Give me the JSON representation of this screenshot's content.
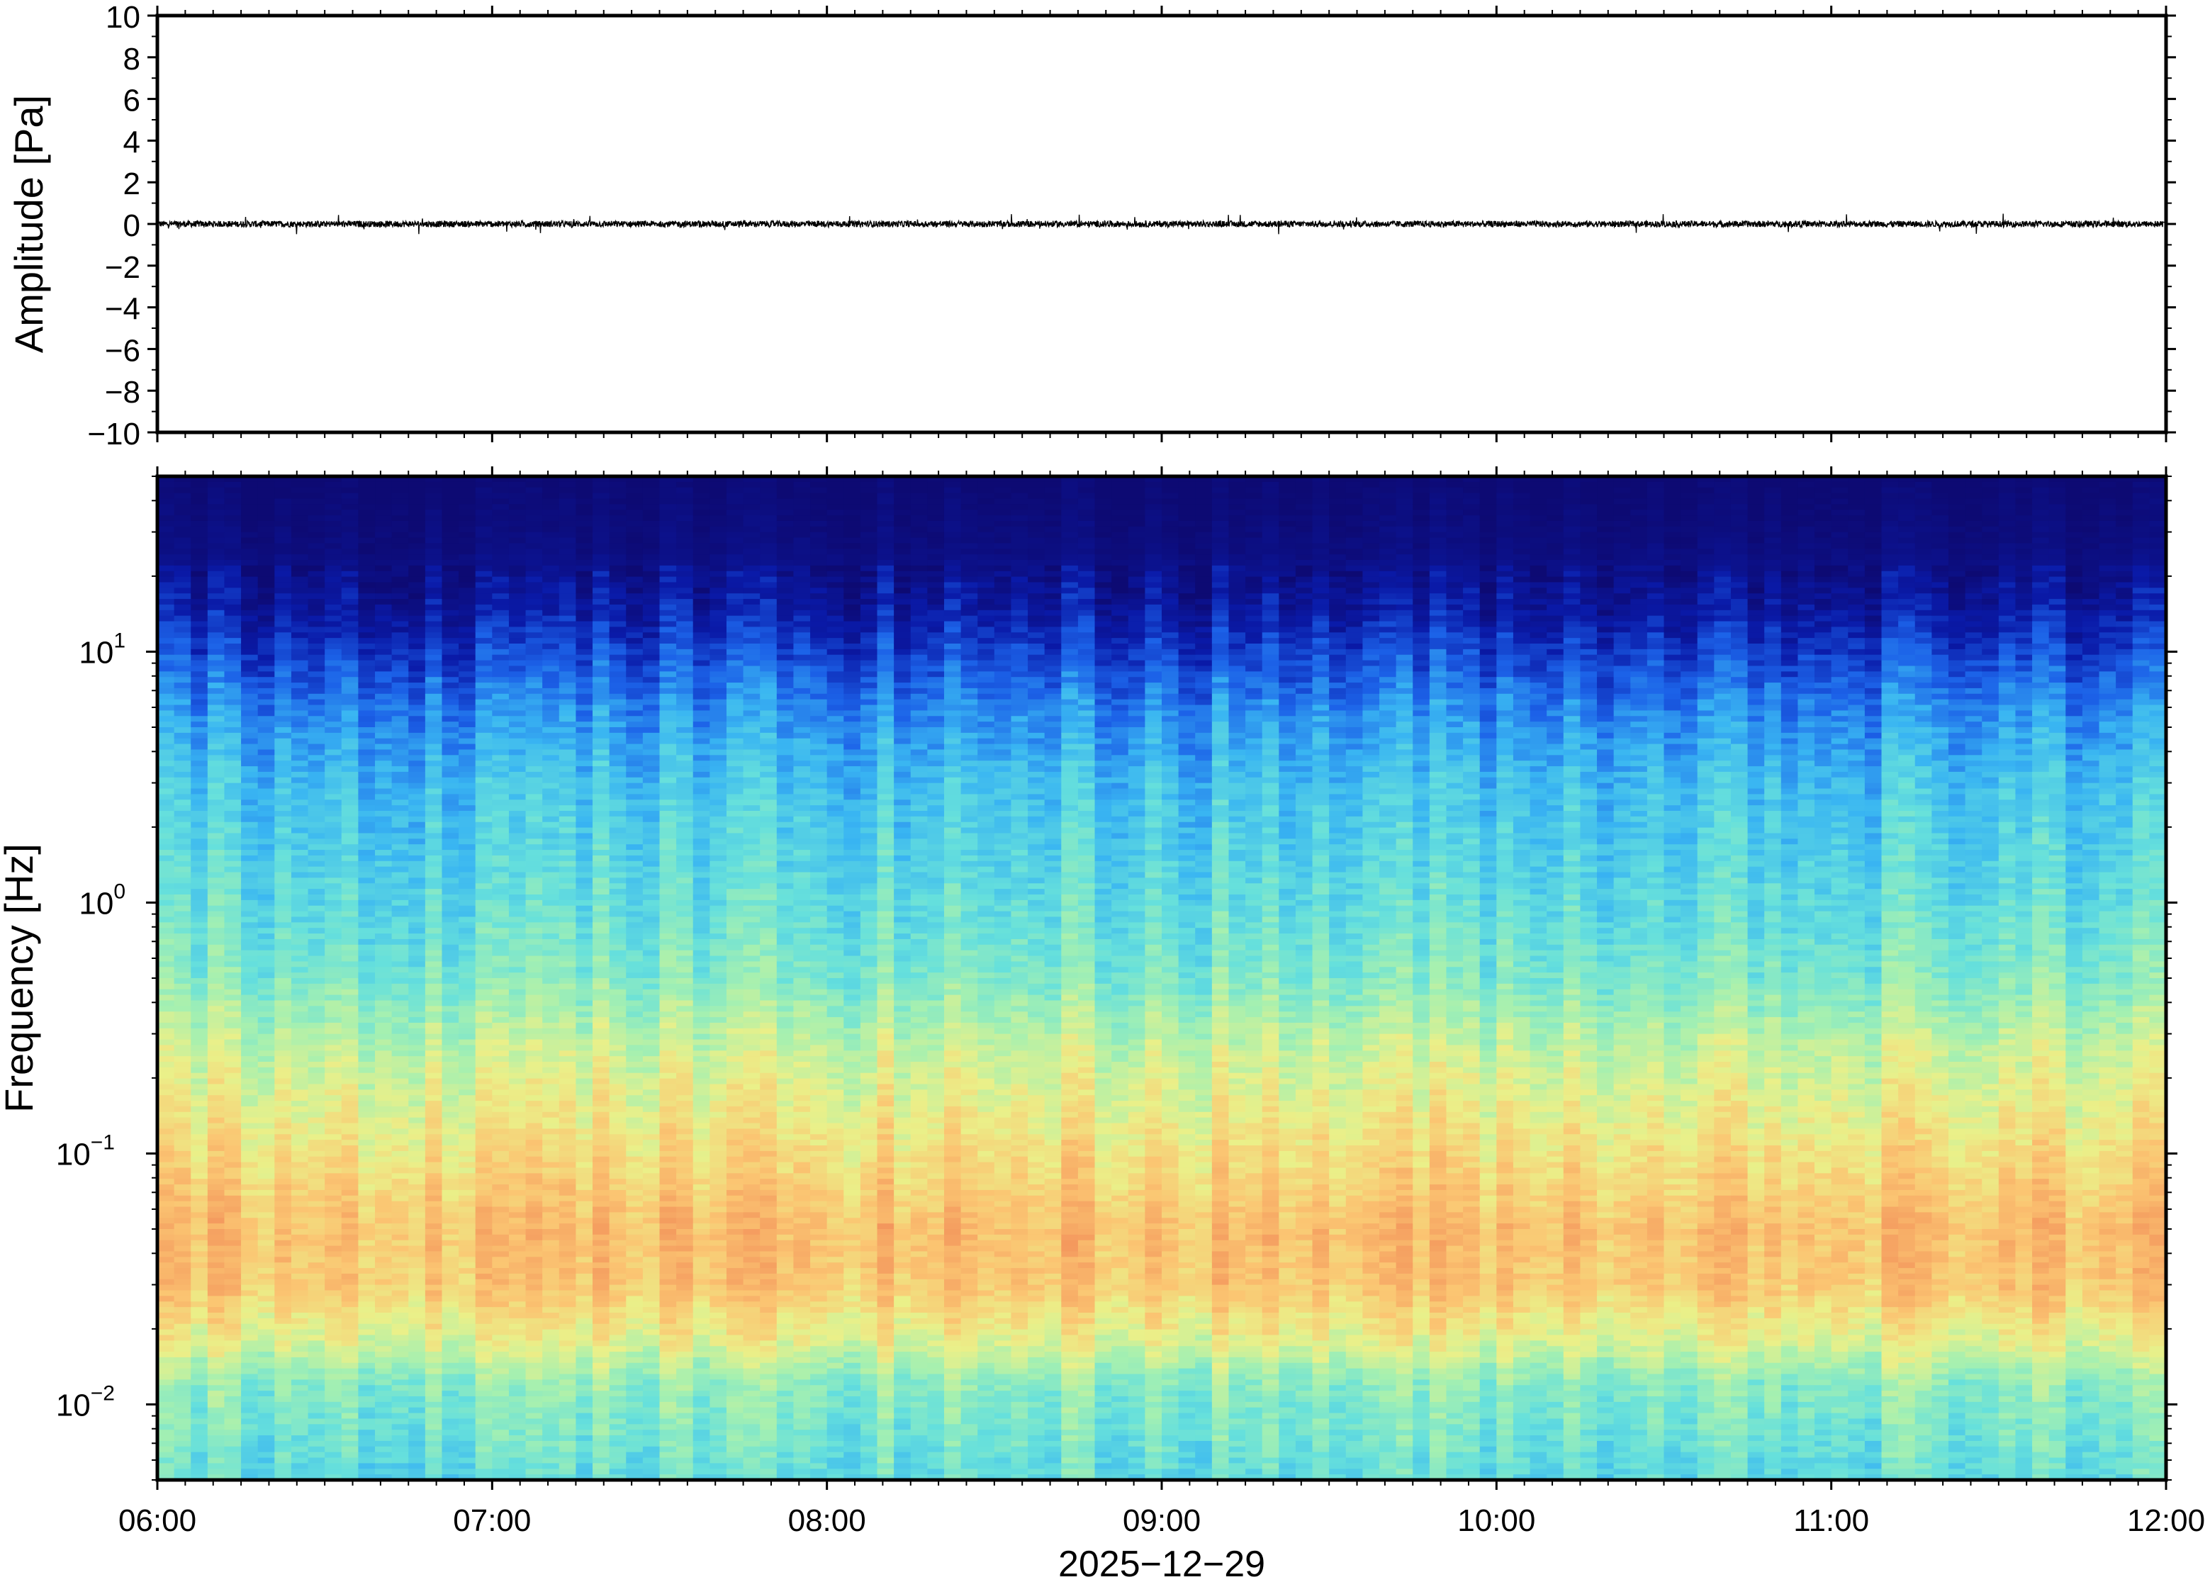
{
  "chart_data": [
    {
      "type": "line",
      "ylabel": "Amplitude [Pa]",
      "ylim": [
        -10,
        10
      ],
      "yticks": [
        {
          "value": 10,
          "label": "10"
        },
        {
          "value": 8,
          "label": "8"
        },
        {
          "value": 6,
          "label": "6"
        },
        {
          "value": 4,
          "label": "4"
        },
        {
          "value": 2,
          "label": "2"
        },
        {
          "value": 0,
          "label": "0"
        },
        {
          "value": -2,
          "label": "−2"
        },
        {
          "value": -4,
          "label": "−4"
        },
        {
          "value": -6,
          "label": "−6"
        },
        {
          "value": -8,
          "label": "−8"
        },
        {
          "value": -10,
          "label": "−10"
        }
      ],
      "xlim": [
        "06:00",
        "12:00"
      ],
      "grid": false,
      "series": [
        {
          "noise_amplitude_pa": 0.15,
          "max_spike_pa": 0.5,
          "baseline_pa": 0
        }
      ]
    },
    {
      "type": "heatmap",
      "ylabel": "Frequency [Hz]",
      "yscale": "log",
      "ylim": [
        0.005,
        50
      ],
      "yticks": [
        {
          "value": 10,
          "base": "10",
          "exp": "1"
        },
        {
          "value": 1,
          "base": "10",
          "exp": "0"
        },
        {
          "value": 0.1,
          "base": "10",
          "exp": "−1"
        },
        {
          "value": 0.01,
          "base": "10",
          "exp": "−2"
        }
      ],
      "xlabel": "2025−12−29",
      "xlim": [
        "06:00",
        "12:00"
      ],
      "xticks": [
        "06:00",
        "07:00",
        "08:00",
        "09:00",
        "10:00",
        "11:00",
        "12:00"
      ],
      "colormap": "jet",
      "colormap_stops": [
        "#0d0a73",
        "#0a1aa8",
        "#1c62e8",
        "#39b5f2",
        "#66e0dc",
        "#a6f0b0",
        "#eaf089",
        "#fbc572",
        "#f49a5e",
        "#e8634a"
      ],
      "color_profile": [
        {
          "freq_hz": 50,
          "level": 0.0
        },
        {
          "freq_hz": 25,
          "level": 0.03
        },
        {
          "freq_hz": 15,
          "level": 0.1
        },
        {
          "freq_hz": 10,
          "level": 0.18
        },
        {
          "freq_hz": 6,
          "level": 0.28
        },
        {
          "freq_hz": 3,
          "level": 0.37
        },
        {
          "freq_hz": 1,
          "level": 0.44
        },
        {
          "freq_hz": 0.5,
          "level": 0.5
        },
        {
          "freq_hz": 0.25,
          "level": 0.62
        },
        {
          "freq_hz": 0.12,
          "level": 0.7
        },
        {
          "freq_hz": 0.05,
          "level": 0.8
        },
        {
          "freq_hz": 0.03,
          "level": 0.78
        },
        {
          "freq_hz": 0.018,
          "level": 0.66
        },
        {
          "freq_hz": 0.012,
          "level": 0.52
        },
        {
          "freq_hz": 0.005,
          "level": 0.44
        }
      ]
    }
  ]
}
